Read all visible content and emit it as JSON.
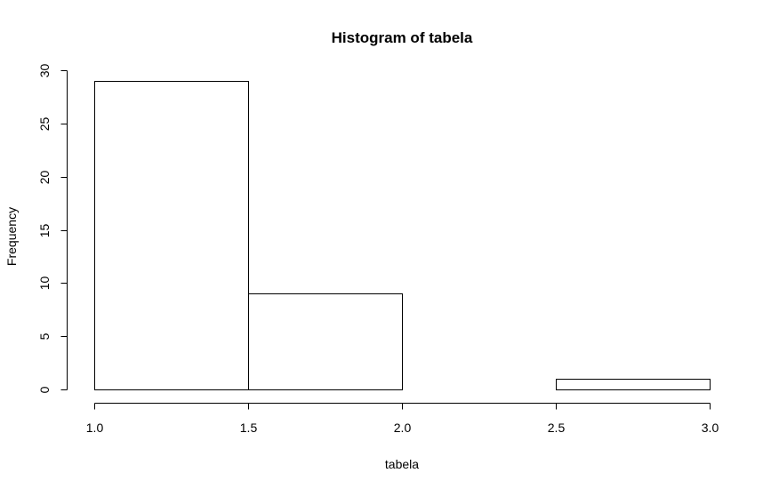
{
  "chart_data": {
    "type": "bar",
    "title": "Histogram of tabela",
    "xlabel": "tabela",
    "ylabel": "Frequency",
    "bins": [
      {
        "from": 1.0,
        "to": 1.5,
        "count": 29
      },
      {
        "from": 1.5,
        "to": 2.0,
        "count": 9
      },
      {
        "from": 2.0,
        "to": 2.5,
        "count": 0
      },
      {
        "from": 2.5,
        "to": 3.0,
        "count": 1
      }
    ],
    "xlim": [
      1.0,
      3.0
    ],
    "ylim": [
      0,
      30
    ],
    "x_ticks": [
      1.0,
      1.5,
      2.0,
      2.5,
      3.0
    ],
    "x_tick_labels": [
      "1.0",
      "1.5",
      "2.0",
      "2.5",
      "3.0"
    ],
    "y_ticks": [
      0,
      5,
      10,
      15,
      20,
      25,
      30
    ],
    "y_tick_labels": [
      "0",
      "5",
      "10",
      "15",
      "20",
      "25",
      "30"
    ],
    "grid": false,
    "bar_fill": "#ffffff",
    "bar_stroke": "#000000"
  }
}
